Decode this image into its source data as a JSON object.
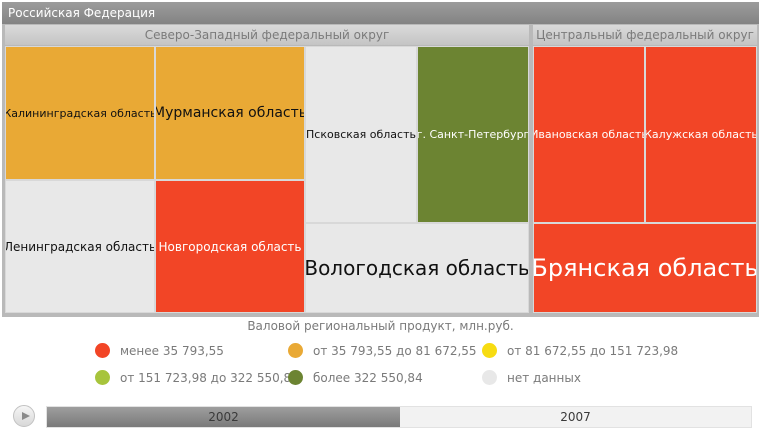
{
  "chart_data": {
    "type": "treemap",
    "root": "Российская Федерация",
    "groups": [
      {
        "name": "Северо-Западный федеральный округ"
      },
      {
        "name": "Центральный федеральный округ"
      }
    ],
    "regions": [
      {
        "name": "Калининградская область",
        "group": "Северо-Западный федеральный округ",
        "category": "от 35 793,55 до 81 672,55"
      },
      {
        "name": "Мурманская область",
        "group": "Северо-Западный федеральный округ",
        "category": "от 35 793,55 до 81 672,55"
      },
      {
        "name": "Ленинградская область",
        "group": "Северо-Западный федеральный округ",
        "category": "нет данных"
      },
      {
        "name": "Новгородская область",
        "group": "Северо-Западный федеральный округ",
        "category": "менее 35 793,55"
      },
      {
        "name": "Псковская область",
        "group": "Северо-Западный федеральный округ",
        "category": "нет данных"
      },
      {
        "name": "г. Санкт-Петербург",
        "group": "Северо-Западный федеральный округ",
        "category": "более 322 550,84"
      },
      {
        "name": "Вологодская область",
        "group": "Северо-Западный федеральный округ",
        "category": "нет данных"
      },
      {
        "name": "Ивановская область",
        "group": "Центральный федеральный округ",
        "category": "менее 35 793,55"
      },
      {
        "name": "Калужская область",
        "group": "Центральный федеральный округ",
        "category": "менее 35 793,55"
      },
      {
        "name": "Брянская область",
        "group": "Центральный федеральный округ",
        "category": "менее 35 793,55"
      }
    ],
    "legend_title": "Валовой региональный продукт, млн.руб.",
    "legend": [
      {
        "label": "менее 35 793,55",
        "color": "#f24526"
      },
      {
        "label": "от 35 793,55 до 81 672,55",
        "color": "#e9a935"
      },
      {
        "label": "от 81 672,55 до 151 723,98",
        "color": "#f7dc12"
      },
      {
        "label": "от 151 723,98 до 322 550,84",
        "color": "#a7c43c"
      },
      {
        "label": "более 322 550,84",
        "color": "#6c8432"
      },
      {
        "label": "нет данных",
        "color": "#e8e8e8"
      }
    ]
  },
  "timeline": {
    "years": [
      "2002",
      "2007"
    ],
    "selected": "2002"
  }
}
